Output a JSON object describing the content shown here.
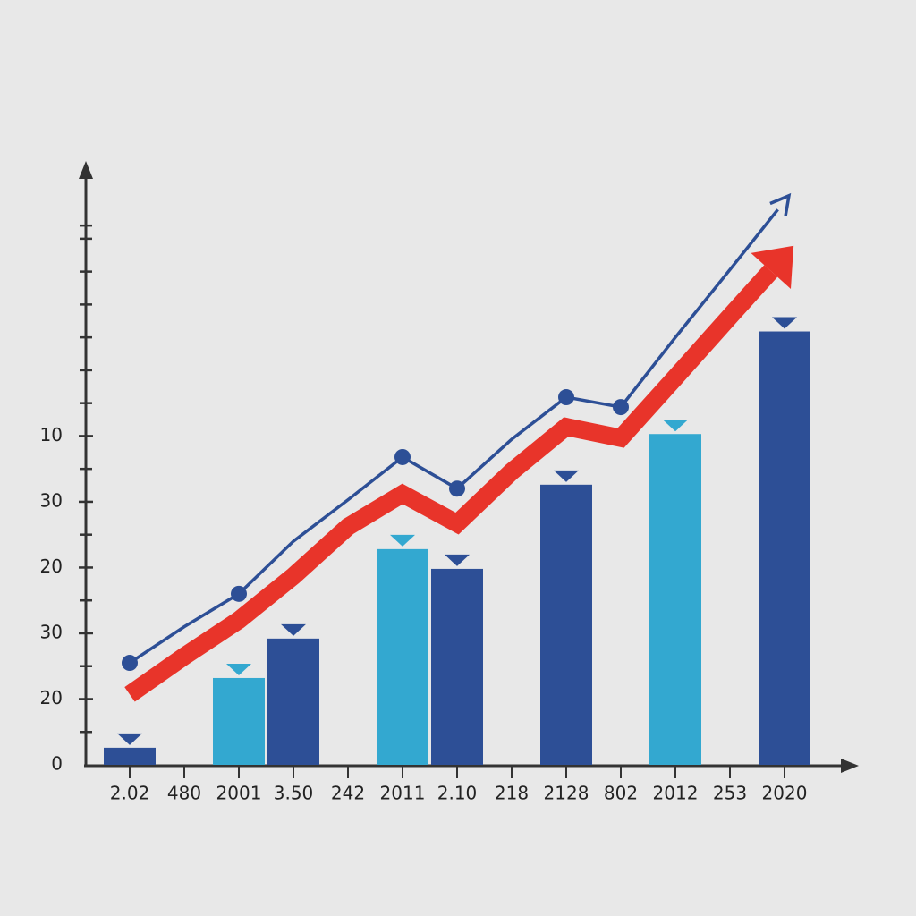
{
  "chart_data": {
    "type": "bar",
    "categories": [
      "2.02",
      "480",
      "2001",
      "3.50",
      "242",
      "2011",
      "2.10",
      "218",
      "2128",
      "802",
      "2012",
      "253",
      "2020"
    ],
    "series": [
      {
        "type": "bar",
        "values": [
          0.26,
          null,
          1.32,
          1.92,
          null,
          3.28,
          2.98,
          null,
          4.26,
          null,
          5.03,
          null,
          6.59
        ],
        "colors": [
          "#2d4f96",
          null,
          "#33a8d0",
          "#2d4f96",
          null,
          "#33a8d0",
          "#2d4f96",
          null,
          "#2d4f96",
          null,
          "#33a8d0",
          null,
          "#2d4f96"
        ]
      },
      {
        "type": "line",
        "color": "#2d4f96",
        "values": [
          1.55,
          2.1,
          2.6,
          3.4,
          4.03,
          4.68,
          4.2,
          4.95,
          5.59,
          5.44,
          6.5,
          7.53,
          8.57
        ]
      },
      {
        "type": "line",
        "color": "#e8342a",
        "values": [
          1.07,
          1.65,
          2.2,
          2.87,
          3.62,
          4.12,
          3.67,
          4.46,
          5.14,
          4.97,
          5.89,
          6.82,
          7.74
        ]
      }
    ],
    "ylim": [
      0,
      9.1
    ],
    "yticks": [
      0,
      {
        "value": 1,
        "label": "20"
      },
      {
        "value": 2,
        "label": "30"
      },
      {
        "value": 3,
        "label": "20"
      },
      {
        "value": 4,
        "label": "30"
      },
      {
        "value": 5,
        "label": "10"
      }
    ],
    "yminor_ticks": [
      0.5,
      1.5,
      2.5,
      3.5,
      4.5,
      5.5,
      6,
      6.5,
      7,
      7.5,
      8,
      8.2
    ]
  }
}
